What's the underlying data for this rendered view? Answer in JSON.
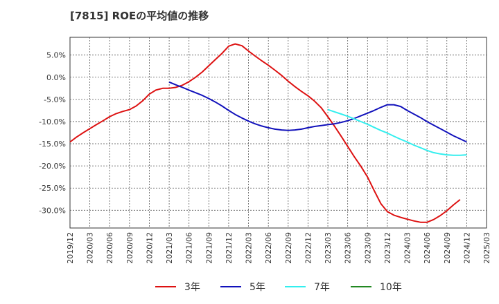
{
  "chart_data": {
    "type": "line",
    "title": "[7815]  ROEの平均値の推移",
    "xlabel": "",
    "ylabel": "",
    "ylim": [
      -34,
      9
    ],
    "y_ticks": [
      5,
      0,
      -5,
      -10,
      -15,
      -20,
      -25,
      -30
    ],
    "y_tick_labels": [
      "5.0%",
      "0.0%",
      "-5.0%",
      "-10.0%",
      "-15.0%",
      "-20.0%",
      "-25.0%",
      "-30.0%"
    ],
    "x_tick_labels": [
      "2019/12",
      "2020/03",
      "2020/06",
      "2020/09",
      "2020/12",
      "2021/03",
      "2021/06",
      "2021/09",
      "2021/12",
      "2022/03",
      "2022/06",
      "2022/09",
      "2022/12",
      "2023/03",
      "2023/06",
      "2023/09",
      "2023/12",
      "2024/03",
      "2024/06",
      "2024/09",
      "2024/12",
      "2025/03"
    ],
    "grid": true,
    "legend_position": "bottom",
    "series": [
      {
        "name": "3年",
        "color": "#dd1111",
        "x": [
          0,
          0.33,
          0.67,
          1,
          1.33,
          1.67,
          2,
          2.33,
          2.67,
          3,
          3.33,
          3.67,
          4,
          4.33,
          4.67,
          5,
          5.33,
          5.67,
          6,
          6.33,
          6.67,
          7,
          7.33,
          7.67,
          8,
          8.33,
          8.67,
          9,
          9.33,
          9.67,
          10,
          10.33,
          10.67,
          11,
          11.33,
          11.67,
          12,
          12.33,
          12.67,
          13,
          13.33,
          13.67,
          14,
          14.33,
          14.67,
          15,
          15.33,
          15.67,
          16,
          16.33,
          16.67,
          17,
          17.33,
          17.67,
          18,
          18.33,
          18.67,
          19,
          19.33,
          19.67,
          20
        ],
        "values": [
          -14.6,
          -13.5,
          -12.5,
          -11.6,
          -10.7,
          -9.8,
          -8.9,
          -8.2,
          -7.7,
          -7.3,
          -6.5,
          -5.3,
          -3.8,
          -2.9,
          -2.5,
          -2.5,
          -2.3,
          -1.8,
          -1.0,
          0.0,
          1.2,
          2.6,
          4.0,
          5.4,
          7.0,
          7.5,
          7.1,
          5.9,
          4.8,
          3.7,
          2.7,
          1.6,
          0.4,
          -0.9,
          -2.1,
          -3.2,
          -4.2,
          -5.4,
          -6.9,
          -8.9,
          -11.0,
          -13.3,
          -15.6,
          -17.9,
          -20.1,
          -22.5,
          -25.5,
          -28.5,
          -30.3,
          -31.1,
          -31.6,
          -32.0,
          -32.4,
          -32.7,
          -32.7,
          -32.1,
          -31.2,
          -30.1,
          -28.8,
          -27.6,
          null
        ]
      },
      {
        "name": "5年",
        "color": "#1111bb",
        "x": [
          5,
          5.33,
          5.67,
          6,
          6.33,
          6.67,
          7,
          7.33,
          7.67,
          8,
          8.33,
          8.67,
          9,
          9.33,
          9.67,
          10,
          10.33,
          10.67,
          11,
          11.33,
          11.67,
          12,
          12.33,
          12.67,
          13,
          13.33,
          13.67,
          14,
          14.33,
          14.67,
          15,
          15.33,
          15.67,
          16,
          16.33,
          16.67,
          17,
          17.33,
          17.67,
          18,
          18.33,
          18.67,
          19,
          19.33,
          19.67,
          20
        ],
        "values": [
          -1.1,
          -1.7,
          -2.3,
          -2.9,
          -3.5,
          -4.1,
          -4.8,
          -5.6,
          -6.5,
          -7.5,
          -8.4,
          -9.2,
          -9.9,
          -10.5,
          -11.0,
          -11.4,
          -11.7,
          -11.9,
          -12.0,
          -11.9,
          -11.7,
          -11.4,
          -11.1,
          -10.9,
          -10.7,
          -10.5,
          -10.2,
          -9.8,
          -9.3,
          -8.7,
          -8.1,
          -7.5,
          -6.8,
          -6.2,
          -6.2,
          -6.6,
          -7.5,
          -8.3,
          -9.1,
          -10.0,
          -10.8,
          -11.6,
          -12.4,
          -13.2,
          -13.9,
          -14.6
        ]
      },
      {
        "name": "7年",
        "color": "#33eeee",
        "x": [
          13,
          13.33,
          13.67,
          14,
          14.33,
          14.67,
          15,
          15.33,
          15.67,
          16,
          16.33,
          16.67,
          17,
          17.33,
          17.67,
          18,
          18.33,
          18.67,
          19,
          19.33,
          19.67,
          20
        ],
        "values": [
          -7.3,
          -7.8,
          -8.3,
          -8.8,
          -9.4,
          -10.0,
          -10.6,
          -11.3,
          -12.0,
          -12.6,
          -13.3,
          -14.0,
          -14.6,
          -15.3,
          -15.9,
          -16.5,
          -17.0,
          -17.3,
          -17.5,
          -17.6,
          -17.6,
          -17.5
        ]
      },
      {
        "name": "10年",
        "color": "#228822",
        "x": [],
        "values": []
      }
    ]
  }
}
